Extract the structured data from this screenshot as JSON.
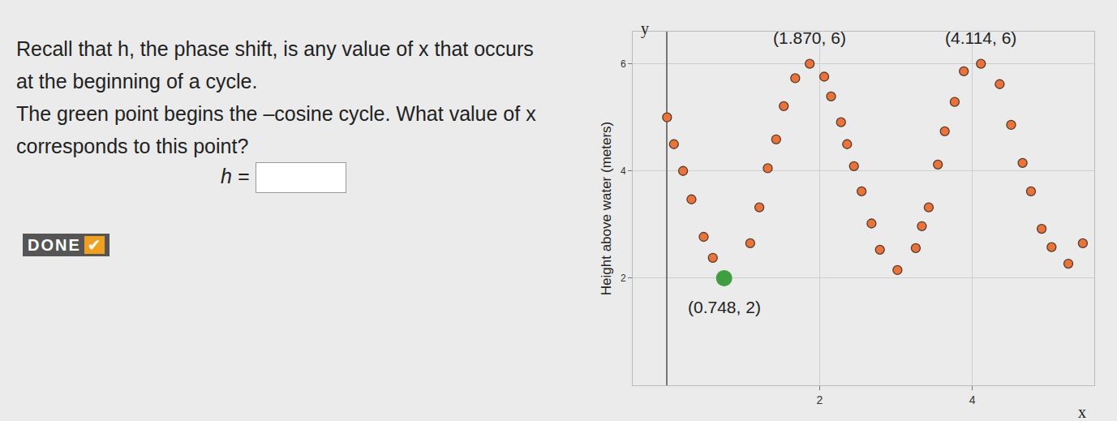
{
  "question": {
    "paragraph1": "Recall that h, the phase shift, is any value of x that occurs at the beginning of a cycle.",
    "paragraph2": "The green point begins the –cosine cycle. What value of x corresponds to this point?",
    "answer_label": "h =",
    "button": "DONE",
    "button_mark": "✔"
  },
  "chart_data": {
    "type": "scatter",
    "y_axis_title": "Height above water (meters)",
    "x_label": "x",
    "y_label": "y",
    "xlim": [
      -0.45,
      5.6
    ],
    "xticks": [
      2,
      4
    ],
    "ylim": [
      0,
      6.6
    ],
    "yticks": [
      2,
      4,
      6
    ],
    "grid": true,
    "series": [
      {
        "color": "#e8743b",
        "x": [
          0.0,
          0.09,
          0.21,
          0.32,
          0.48,
          0.6,
          1.09,
          1.21,
          1.32,
          1.43,
          1.53,
          1.68,
          1.87,
          2.06,
          2.15,
          2.28,
          2.36,
          2.45,
          2.55,
          2.68,
          2.79,
          3.02,
          3.26,
          3.34,
          3.43,
          3.55,
          3.64,
          3.77,
          3.89,
          4.114,
          4.36,
          4.51,
          4.66,
          4.77,
          4.91,
          5.04,
          5.26,
          5.45
        ],
        "values": [
          5.0,
          4.5,
          4.0,
          3.47,
          2.77,
          2.38,
          2.65,
          3.32,
          4.05,
          4.59,
          5.21,
          5.73,
          6,
          5.76,
          5.39,
          4.91,
          4.5,
          4.09,
          3.62,
          3.02,
          2.53,
          2.15,
          2.56,
          2.97,
          3.32,
          4.12,
          4.74,
          5.29,
          5.86,
          6,
          5.62,
          4.86,
          4.15,
          3.62,
          2.92,
          2.58,
          2.27,
          2.65
        ]
      },
      {
        "color": "#3f9e3f",
        "x": [
          0.748
        ],
        "values": [
          2
        ]
      }
    ],
    "annotations": [
      {
        "text": "(1.870, 6)",
        "x": 1.87,
        "y": 6
      },
      {
        "text": "(4.114, 6)",
        "x": 4.114,
        "y": 6
      },
      {
        "text": "(0.748, 2)",
        "x": 0.748,
        "y": 2
      }
    ]
  }
}
